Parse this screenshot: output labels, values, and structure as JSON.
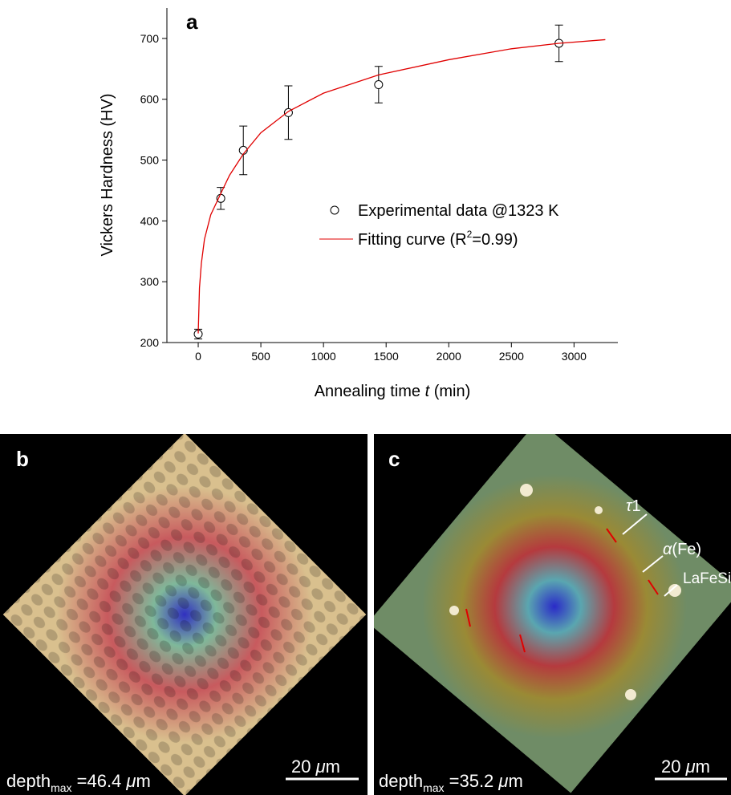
{
  "chart_data": {
    "type": "scatter",
    "panel_label": "a",
    "ylabel": "Vickers Hardness (HV)",
    "xlabel_parts": [
      "Annealing time ",
      "t",
      " (min)"
    ],
    "xlim": [
      -250,
      3350
    ],
    "ylim": [
      200,
      750
    ],
    "xticks": [
      0,
      500,
      1000,
      1500,
      2000,
      2500,
      3000
    ],
    "yticks": [
      200,
      300,
      400,
      500,
      600,
      700
    ],
    "series": [
      {
        "name": "Experimental data @1323 K",
        "color": "#000000",
        "marker": "open-circle",
        "x": [
          0,
          180,
          360,
          720,
          1440,
          2880
        ],
        "values": [
          214,
          437,
          516,
          578,
          624,
          692
        ],
        "errors": [
          8,
          18,
          40,
          44,
          30,
          30
        ]
      },
      {
        "name_parts": [
          "Fitting curve  (R",
          "2",
          "=0.99)"
        ],
        "color": "#e00000",
        "marker": "line",
        "x": [
          0,
          10,
          25,
          50,
          100,
          180,
          250,
          360,
          500,
          720,
          1000,
          1440,
          2000,
          2500,
          2880,
          3250
        ],
        "values": [
          215,
          290,
          330,
          370,
          410,
          445,
          475,
          510,
          545,
          580,
          610,
          640,
          665,
          683,
          692,
          698
        ]
      }
    ]
  },
  "panels": [
    {
      "label": "b",
      "depth": [
        "depth",
        "max",
        " =46.4 ",
        "μ",
        "m"
      ],
      "scale": [
        "20 ",
        "μ",
        "m"
      ]
    },
    {
      "label": "c",
      "depth": [
        "depth",
        "max",
        " =35.2 ",
        "μ",
        "m"
      ],
      "scale": [
        "20 ",
        "μ",
        "m"
      ],
      "annotations": [
        [
          "τ",
          "1"
        ],
        [
          "α",
          "(Fe)"
        ],
        [
          "LaFeSi"
        ]
      ]
    }
  ]
}
